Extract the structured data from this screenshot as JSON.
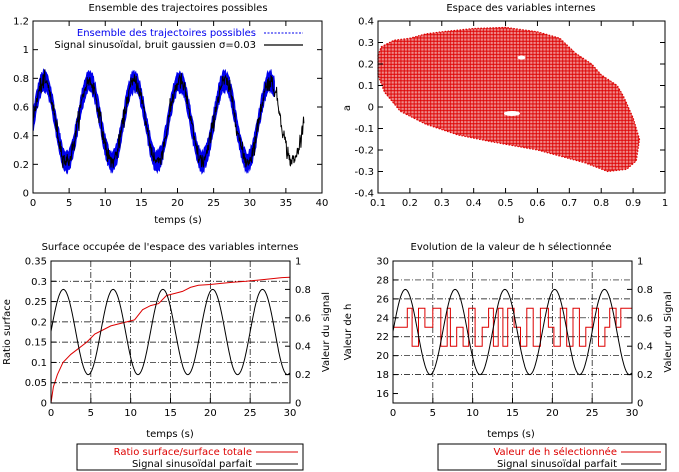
{
  "colors": {
    "blue": "#0000ee",
    "black": "#000000",
    "red": "#dd0000"
  },
  "chart_data": [
    {
      "type": "line",
      "title": "Ensemble des trajectoires possibles",
      "xlabel": "temps (s)",
      "ylabel": "",
      "xlim": [
        0,
        40
      ],
      "ylim": [
        0,
        1.2
      ],
      "xticks": [
        "0",
        "5",
        "10",
        "15",
        "20",
        "25",
        "30",
        "35",
        "40"
      ],
      "yticks": [
        "0",
        "0.2",
        "0.4",
        "0.6",
        "0.8",
        "1",
        "1.2"
      ],
      "legend_position": "top-right",
      "series": [
        {
          "name": "Ensemble des trajectoires possibles",
          "color": "#0000ee",
          "kind": "band",
          "x_range": [
            0,
            33.5
          ],
          "center": 0.5,
          "amplitude": 0.28,
          "period": 6.25,
          "phase_t": 1.55,
          "spread": 0.08
        },
        {
          "name": "Signal sinusoïdal, bruit gaussien σ=0.03",
          "color": "#000000",
          "kind": "noisy",
          "x_range": [
            0,
            37.5
          ],
          "center": 0.5,
          "amplitude": 0.28,
          "period": 6.25,
          "phase_t": 1.55,
          "noise_sigma": 0.03
        }
      ]
    },
    {
      "type": "scatter",
      "title": "Espace des variables internes",
      "xlabel": "b",
      "ylabel": "a",
      "xlim": [
        0.1,
        1
      ],
      "ylim": [
        -0.4,
        0.4
      ],
      "xticks": [
        "0.1",
        "0.2",
        "0.3",
        "0.4",
        "0.5",
        "0.6",
        "0.7",
        "0.8",
        "0.9",
        "1"
      ],
      "yticks": [
        "-0.4",
        "-0.3",
        "-0.2",
        "-0.1",
        "0",
        "0.1",
        "0.2",
        "0.3",
        "0.4"
      ],
      "color": "#dd0000",
      "region_boundary": [
        [
          0.1,
          0.24
        ],
        [
          0.11,
          0.28
        ],
        [
          0.15,
          0.31
        ],
        [
          0.2,
          0.32
        ],
        [
          0.25,
          0.34
        ],
        [
          0.3,
          0.35
        ],
        [
          0.4,
          0.365
        ],
        [
          0.5,
          0.37
        ],
        [
          0.6,
          0.35
        ],
        [
          0.67,
          0.32
        ],
        [
          0.72,
          0.25
        ],
        [
          0.77,
          0.2
        ],
        [
          0.8,
          0.15
        ],
        [
          0.85,
          0.1
        ],
        [
          0.87,
          0.05
        ],
        [
          0.9,
          -0.05
        ],
        [
          0.92,
          -0.15
        ],
        [
          0.91,
          -0.25
        ],
        [
          0.88,
          -0.29
        ],
        [
          0.82,
          -0.3
        ],
        [
          0.75,
          -0.26
        ],
        [
          0.6,
          -0.2
        ],
        [
          0.45,
          -0.16
        ],
        [
          0.35,
          -0.13
        ],
        [
          0.25,
          -0.08
        ],
        [
          0.17,
          -0.02
        ],
        [
          0.12,
          0.07
        ],
        [
          0.1,
          0.15
        ]
      ]
    },
    {
      "type": "line",
      "title": "Surface occupée de l'espace des variables internes",
      "xlabel": "temps (s)",
      "ylabel": "Ratio surface",
      "ylabel_right": "Valeur du signal",
      "xlim": [
        0,
        30
      ],
      "ylim": [
        0,
        0.35
      ],
      "ylim_right": [
        0,
        1
      ],
      "xticks": [
        "0",
        "5",
        "10",
        "15",
        "20",
        "25",
        "30"
      ],
      "yticks": [
        "0",
        "0.05",
        "0.1",
        "0.15",
        "0.2",
        "0.25",
        "0.3",
        "0.35"
      ],
      "yticks_right": [
        "0",
        "0.2",
        "0.4",
        "0.6",
        "0.8",
        "1"
      ],
      "grid": true,
      "legend_position": "bottom-outside",
      "series": [
        {
          "name": "Ratio surface/surface totale",
          "color": "#dd0000",
          "axis": "left",
          "x": [
            0,
            0.3,
            0.8,
            1.5,
            2.5,
            3.5,
            4.5,
            5.5,
            6.5,
            7.5,
            8.5,
            9.5,
            10.5,
            11.5,
            12.5,
            13.5,
            14.5,
            15.5,
            16.5,
            17.5,
            18.5,
            20,
            21.5,
            23,
            24.5,
            26,
            27.5,
            29,
            30
          ],
          "y": [
            0,
            0.04,
            0.07,
            0.1,
            0.12,
            0.135,
            0.15,
            0.17,
            0.18,
            0.19,
            0.195,
            0.2,
            0.205,
            0.23,
            0.24,
            0.245,
            0.265,
            0.27,
            0.275,
            0.285,
            0.29,
            0.292,
            0.295,
            0.298,
            0.3,
            0.303,
            0.306,
            0.309,
            0.31
          ]
        },
        {
          "name": "Signal sinusoïdal parfait",
          "color": "#000000",
          "axis": "right",
          "x_range": [
            0,
            30
          ],
          "center": 0.5,
          "amplitude": 0.3,
          "period": 6.25,
          "phase_t": 1.55
        }
      ]
    },
    {
      "type": "line",
      "title": "Evolution de la valeur de h sélectionnée",
      "xlabel": "temps (s)",
      "ylabel": "Valeur de h",
      "ylabel_right": "Valeur du Signal",
      "xlim": [
        0,
        30
      ],
      "ylim": [
        15,
        30
      ],
      "ylim_right": [
        0,
        1
      ],
      "xticks": [
        "0",
        "5",
        "10",
        "15",
        "20",
        "25",
        "30"
      ],
      "yticks": [
        "16",
        "18",
        "20",
        "22",
        "24",
        "26",
        "28",
        "30"
      ],
      "yticks_right": [
        "0",
        "0.2",
        "0.4",
        "0.6",
        "0.8",
        "1"
      ],
      "grid": true,
      "legend_position": "bottom-outside",
      "series": [
        {
          "name": "Valeur de h sélectionnée",
          "color": "#dd0000",
          "axis": "left",
          "kind": "steps",
          "x": [
            0,
            1.8,
            2.4,
            3.2,
            4.0,
            5.0,
            6.0,
            6.8,
            7.2,
            8.0,
            8.8,
            9.5,
            10.3,
            11.2,
            12.0,
            12.6,
            13.2,
            13.8,
            14.4,
            15.2,
            16.0,
            16.8,
            17.6,
            18.5,
            19.5,
            20.2,
            21.0,
            21.8,
            22.6,
            23.4,
            24.2,
            25.0,
            25.8,
            26.6,
            27.2,
            28.0,
            28.6,
            30
          ],
          "y": [
            23,
            25,
            21,
            25,
            23,
            25,
            21,
            25,
            21,
            23,
            21,
            25,
            21,
            23,
            25,
            21,
            25,
            21,
            25,
            23,
            21,
            25,
            21,
            25,
            23,
            21,
            25,
            21,
            25,
            21,
            23,
            25,
            21,
            23,
            25,
            23,
            25,
            25
          ]
        },
        {
          "name": "Signal sinusoïdal parfait",
          "color": "#000000",
          "axis": "right",
          "x_range": [
            0,
            30
          ],
          "center": 0.5,
          "amplitude": 0.3,
          "period": 6.25,
          "phase_t": 1.55
        }
      ]
    }
  ]
}
